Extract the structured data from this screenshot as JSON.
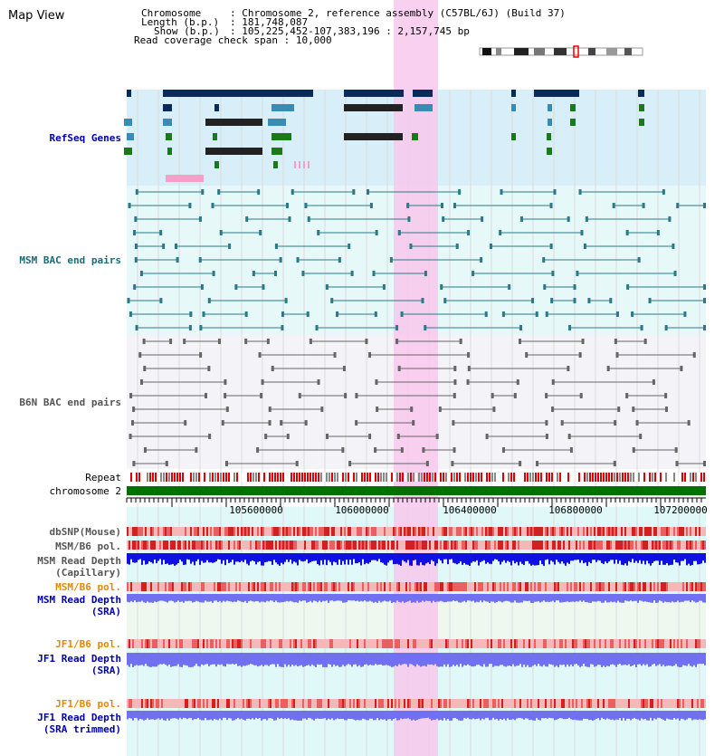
{
  "title": "Map View",
  "info": {
    "chromosome_label": "Chromosome",
    "chromosome_value": "Chromosome 2, reference assembly (C57BL/6J) (Build 37)",
    "length_label": "Length (b.p.)",
    "length_value": "181,748,087",
    "show_label": "Show (b.p.)",
    "show_value": "105,225,452-107,383,196 : 2,157,745 bp",
    "coverage_label": "Read coverage check span",
    "coverage_value": "10,000"
  },
  "tracks": {
    "refseq": "RefSeq Genes",
    "msm_bac": "MSM BAC end pairs",
    "b6n_bac": "B6N BAC end pairs",
    "repeat": "Repeat",
    "chromosome": "chromosome 2",
    "dbsnp": "dbSNP(Mouse)",
    "msm_b6_pol": "MSM/B6 pol.",
    "msm_depth_cap_1": "MSM Read Depth",
    "msm_depth_cap_2": "(Capillary)",
    "msm_b6_pol_2": "MSM/B6 pol.",
    "msm_depth_sra_1": "MSM Read Depth",
    "msm_depth_sra_2": "(SRA)",
    "jf1_b6_pol": "JF1/B6 pol.",
    "jf1_depth_sra_1": "JF1 Read Depth",
    "jf1_depth_sra_2": "(SRA)",
    "jf1_b6_pol_2": "JF1/B6 pol.",
    "jf1_depth_trim_1": "JF1 Read Depth",
    "jf1_depth_trim_2": "(SRA trimmed)"
  },
  "axis_ticks": [
    "105600000",
    "106000000",
    "106400000",
    "106800000",
    "107200000"
  ],
  "colors": {
    "refseq_bg": "#d8eef8",
    "bac_bg": "#e6f8f8",
    "highlight": "#f8c8ec",
    "gene_dark": "#0a2a5c",
    "gene_mid": "#3a8ab8",
    "gene_green": "#1a7a1a",
    "chrom_green": "#007000",
    "msm_bac": "#2a7a8a",
    "b6n_bac": "#666666",
    "depth_blue": "#1010e0",
    "depth_light": "#7070f0",
    "label_blue": "#0000aa",
    "label_teal": "#1a6a7a",
    "label_gray": "#555555",
    "label_orange": "#e08a00"
  }
}
